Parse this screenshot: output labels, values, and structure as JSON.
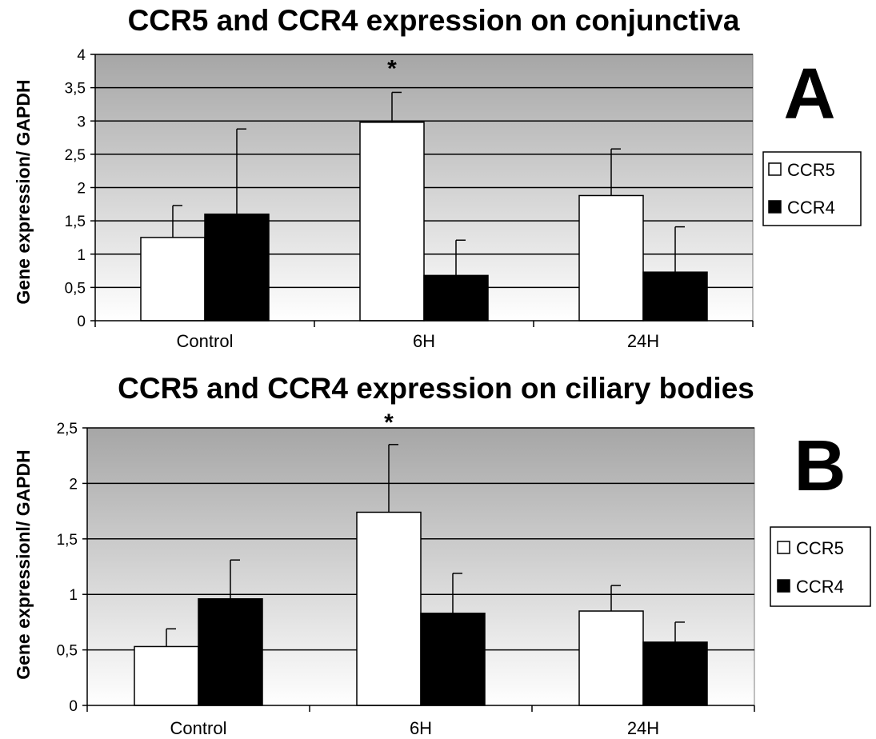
{
  "chart_data": [
    {
      "type": "bar",
      "panel_label": "A",
      "title": "CCR5 and CCR4 expression on conjunctiva",
      "xlabel": "",
      "ylabel": "Gene expression/ GAPDH",
      "categories": [
        "Control",
        "6H",
        "24H"
      ],
      "ylim": [
        0,
        4
      ],
      "yticks": [
        0,
        0.5,
        1,
        1.5,
        2,
        2.5,
        3,
        3.5,
        4
      ],
      "ytick_labels": [
        "0",
        "0,5",
        "1",
        "1,5",
        "2",
        "2,5",
        "3",
        "3,5",
        "4"
      ],
      "series": [
        {
          "name": "CCR5",
          "color": "#ffffff",
          "values": [
            1.25,
            2.98,
            1.88
          ],
          "errors": [
            0.48,
            0.45,
            0.7
          ]
        },
        {
          "name": "CCR4",
          "color": "#000000",
          "values": [
            1.6,
            0.68,
            0.73
          ],
          "errors": [
            1.28,
            0.53,
            0.68
          ]
        }
      ],
      "annotations": [
        {
          "text": "*",
          "category": "6H"
        }
      ],
      "grid": true,
      "legend": "right"
    },
    {
      "type": "bar",
      "panel_label": "B",
      "title": "CCR5 and CCR4 expression on ciliary bodies",
      "xlabel": "",
      "ylabel": "Gene expressionl/ GAPDH",
      "categories": [
        "Control",
        "6H",
        "24H"
      ],
      "ylim": [
        0,
        2.5
      ],
      "yticks": [
        0,
        0.5,
        1,
        1.5,
        2,
        2.5
      ],
      "ytick_labels": [
        "0",
        "0,5",
        "1",
        "1,5",
        "2",
        "2,5"
      ],
      "series": [
        {
          "name": "CCR5",
          "color": "#ffffff",
          "values": [
            0.53,
            1.74,
            0.85
          ],
          "errors": [
            0.16,
            0.61,
            0.23
          ]
        },
        {
          "name": "CCR4",
          "color": "#000000",
          "values": [
            0.96,
            0.83,
            0.57
          ],
          "errors": [
            0.35,
            0.36,
            0.18
          ]
        }
      ],
      "annotations": [
        {
          "text": "*",
          "category": "6H"
        }
      ],
      "grid": true,
      "legend": "right"
    }
  ]
}
